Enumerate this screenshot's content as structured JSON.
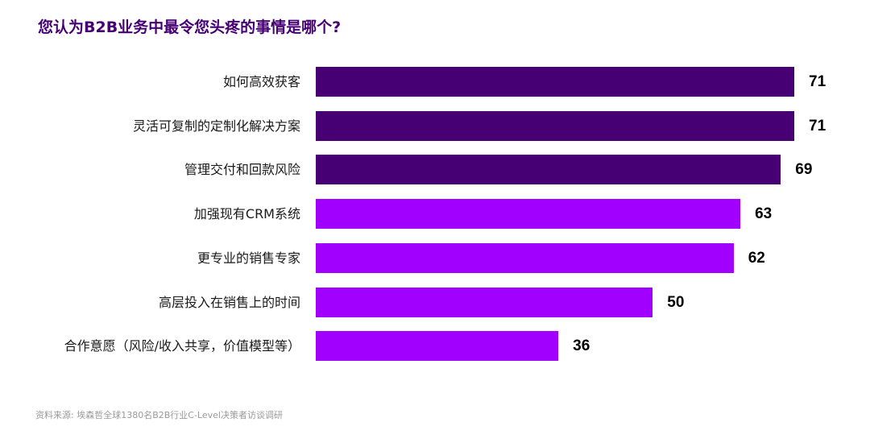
{
  "header": {
    "title": "您认为B2B业务中最令您头疼的事情是哪个?"
  },
  "footer": {
    "source": "资料来源: 埃森哲全球1380名B2B行业C-Level决策者访谈调研"
  },
  "colors": {
    "title": "#460073",
    "bar_dark": "#460073",
    "bar_bright": "#A100FF",
    "value_text": "#000000",
    "source_text": "#9a9a9a"
  },
  "chart_data": {
    "type": "bar",
    "orientation": "horizontal",
    "title": "您认为B2B业务中最令您头疼的事情是哪个?",
    "xlabel": "",
    "ylabel": "",
    "categories": [
      "如何高效获客",
      "灵活可复制的定制化解决方案",
      "管理交付和回款风险",
      "加强现有CRM系统",
      "更专业的销售专家",
      "高层投入在销售上的时间",
      "合作意愿（风险/收入共享，价值模型等）"
    ],
    "values": [
      71,
      71,
      69,
      63,
      62,
      50,
      36
    ],
    "bar_colors": [
      "#460073",
      "#460073",
      "#460073",
      "#A100FF",
      "#A100FF",
      "#A100FF",
      "#A100FF"
    ],
    "data_labels": [
      "71",
      "71",
      "69",
      "63",
      "62",
      "50",
      "36"
    ],
    "xlim": [
      0,
      71
    ],
    "grid": false,
    "legend": null,
    "annotation": "资料来源: 埃森哲全球1380名B2B行业C-Level决策者访谈调研"
  }
}
